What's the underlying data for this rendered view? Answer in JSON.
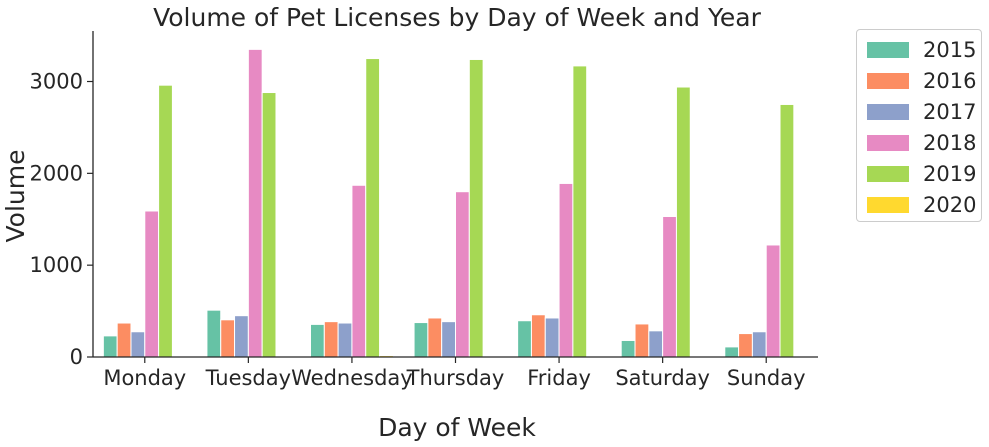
{
  "chart_data": {
    "type": "bar",
    "title": "Volume of Pet Licenses by Day of Week and Year",
    "xlabel": "Day of Week",
    "ylabel": "Volume",
    "ylim": [
      0,
      3550
    ],
    "yticks": [
      0,
      1000,
      2000,
      3000
    ],
    "grid": false,
    "legend_position": "outside-right",
    "categories": [
      "Monday",
      "Tuesday",
      "Wednesday",
      "Thursday",
      "Friday",
      "Saturday",
      "Sunday"
    ],
    "series": [
      {
        "name": "2015",
        "color": "#66c2a5",
        "values": [
          230,
          510,
          355,
          375,
          395,
          180,
          110
        ]
      },
      {
        "name": "2016",
        "color": "#fc8d62",
        "values": [
          370,
          405,
          385,
          425,
          460,
          360,
          255
        ]
      },
      {
        "name": "2017",
        "color": "#8da0cb",
        "values": [
          275,
          450,
          370,
          385,
          425,
          285,
          275
        ]
      },
      {
        "name": "2018",
        "color": "#e78ac3",
        "values": [
          1590,
          3350,
          1870,
          1800,
          1890,
          1530,
          1220
        ]
      },
      {
        "name": "2019",
        "color": "#a6d854",
        "values": [
          2960,
          2880,
          3250,
          3240,
          3170,
          2940,
          2750
        ]
      },
      {
        "name": "2020",
        "color": "#ffd92f",
        "values": [
          0,
          0,
          15,
          0,
          0,
          0,
          0
        ]
      }
    ]
  }
}
